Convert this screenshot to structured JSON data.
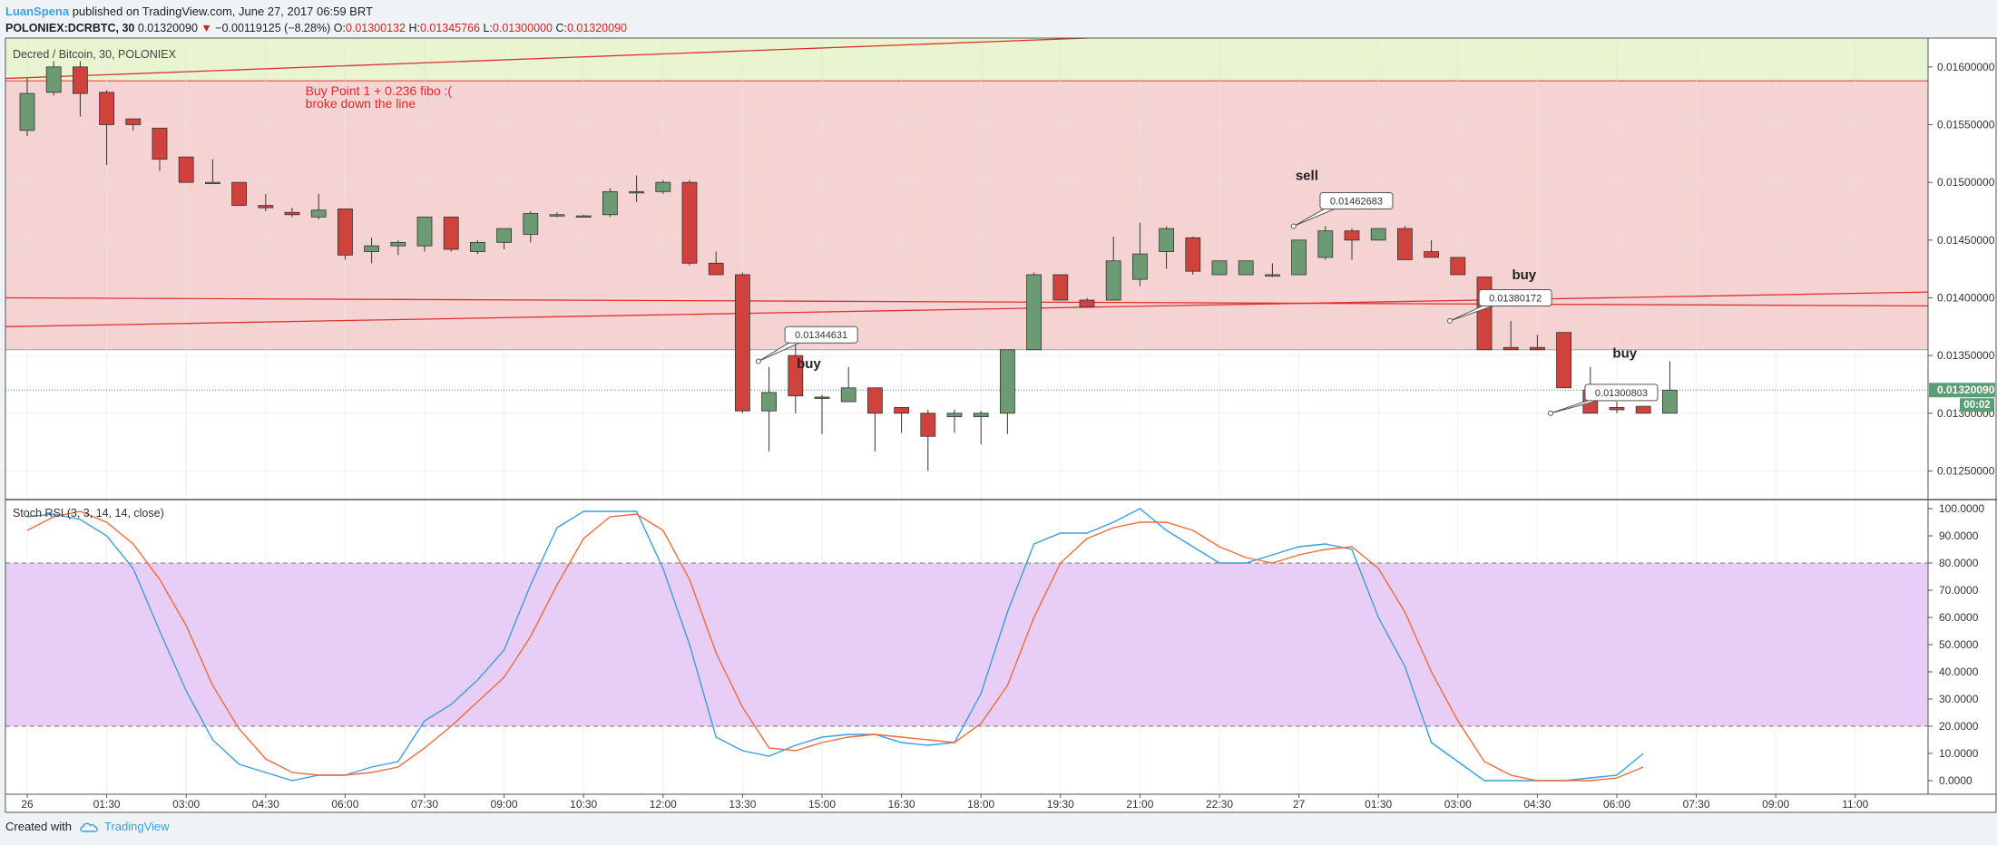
{
  "header": {
    "author": "LuanSpena",
    "published": " published on TradingView.com, June 27, 2017 06:59 BRT",
    "symbol": "POLONIEX:DCRBTC, 30",
    "last": "0.01320090",
    "change_arrow": "▼",
    "change": "−0.00119125 (−8.28%)",
    "o_label": "O:",
    "o_value": "0.01300132",
    "h_label": "H:",
    "h_value": "0.01345766",
    "l_label": "L:",
    "l_value": "0.01300000",
    "c_label": "C:",
    "c_value": "0.01320090"
  },
  "footer": {
    "created_with": "Created with",
    "brand": "TradingView",
    "logo_icon": "tradingview-cloud-icon"
  },
  "colors": {
    "up": "#6b9a73",
    "down": "#d0433c",
    "green_zone": "#e8f5d0",
    "red_zone": "#f5d3d3",
    "rsi_band": "#e8cdf6",
    "k_line": "#3a9ee0",
    "d_line": "#f26b3a",
    "annotation_red": "#e02a2a",
    "last_price_badge": "#5a9e74"
  },
  "chart_data": [
    {
      "type": "candlestick",
      "title": "Decred / Bitcoin, 30, POLONIEX",
      "ylim": [
        0.01226,
        0.01625
      ],
      "y_ticks": [
        "0.01600000",
        "0.01550000",
        "0.01500000",
        "0.01450000",
        "0.01400000",
        "0.01350000",
        "0.01300000",
        "0.01250000"
      ],
      "last_price_label": "0.01320090",
      "countdown_label": "00:02",
      "x_tick_labels": [
        "26",
        "01:30",
        "03:00",
        "04:30",
        "06:00",
        "07:30",
        "09:00",
        "10:30",
        "12:00",
        "13:30",
        "15:00",
        "16:30",
        "18:00",
        "19:30",
        "21:00",
        "22:30",
        "27",
        "01:30",
        "03:00",
        "04:30",
        "06:00",
        "07:30",
        "09:00",
        "11:00"
      ],
      "candles": [
        {
          "o": 0.01545,
          "h": 0.0159,
          "l": 0.0154,
          "c": 0.01577
        },
        {
          "o": 0.01578,
          "h": 0.01605,
          "l": 0.01575,
          "c": 0.016
        },
        {
          "o": 0.016,
          "h": 0.01605,
          "l": 0.01557,
          "c": 0.01577
        },
        {
          "o": 0.01578,
          "h": 0.0158,
          "l": 0.01515,
          "c": 0.0155
        },
        {
          "o": 0.01555,
          "h": 0.01555,
          "l": 0.01545,
          "c": 0.0155
        },
        {
          "o": 0.01547,
          "h": 0.01547,
          "l": 0.0151,
          "c": 0.0152
        },
        {
          "o": 0.01522,
          "h": 0.01522,
          "l": 0.015,
          "c": 0.015
        },
        {
          "o": 0.015,
          "h": 0.0152,
          "l": 0.015,
          "c": 0.015
        },
        {
          "o": 0.015,
          "h": 0.015,
          "l": 0.0148,
          "c": 0.0148
        },
        {
          "o": 0.0148,
          "h": 0.0149,
          "l": 0.01475,
          "c": 0.01478
        },
        {
          "o": 0.01474,
          "h": 0.01478,
          "l": 0.0147,
          "c": 0.01472
        },
        {
          "o": 0.0147,
          "h": 0.0149,
          "l": 0.01468,
          "c": 0.01476
        },
        {
          "o": 0.01477,
          "h": 0.01477,
          "l": 0.01433,
          "c": 0.01437
        },
        {
          "o": 0.0144,
          "h": 0.01452,
          "l": 0.0143,
          "c": 0.01445
        },
        {
          "o": 0.01445,
          "h": 0.0145,
          "l": 0.01437,
          "c": 0.01448
        },
        {
          "o": 0.01445,
          "h": 0.0147,
          "l": 0.0144,
          "c": 0.0147
        },
        {
          "o": 0.0147,
          "h": 0.0147,
          "l": 0.0144,
          "c": 0.01442
        },
        {
          "o": 0.0144,
          "h": 0.0145,
          "l": 0.01438,
          "c": 0.01448
        },
        {
          "o": 0.01448,
          "h": 0.0146,
          "l": 0.01442,
          "c": 0.0146
        },
        {
          "o": 0.01455,
          "h": 0.01475,
          "l": 0.01448,
          "c": 0.01473
        },
        {
          "o": 0.01472,
          "h": 0.01474,
          "l": 0.0147,
          "c": 0.01472
        },
        {
          "o": 0.0147,
          "h": 0.01472,
          "l": 0.0147,
          "c": 0.01471
        },
        {
          "o": 0.01472,
          "h": 0.01495,
          "l": 0.0147,
          "c": 0.01492
        },
        {
          "o": 0.01492,
          "h": 0.01506,
          "l": 0.01483,
          "c": 0.01492
        },
        {
          "o": 0.01492,
          "h": 0.01502,
          "l": 0.0149,
          "c": 0.015
        },
        {
          "o": 0.015,
          "h": 0.01502,
          "l": 0.01428,
          "c": 0.0143
        },
        {
          "o": 0.0143,
          "h": 0.0144,
          "l": 0.0142,
          "c": 0.0142
        },
        {
          "o": 0.0142,
          "h": 0.01422,
          "l": 0.013,
          "c": 0.01302
        },
        {
          "o": 0.01302,
          "h": 0.0134,
          "l": 0.01267,
          "c": 0.01318
        },
        {
          "o": 0.0135,
          "h": 0.0136,
          "l": 0.013,
          "c": 0.01315
        },
        {
          "o": 0.01314,
          "h": 0.01316,
          "l": 0.01282,
          "c": 0.01313
        },
        {
          "o": 0.0131,
          "h": 0.0134,
          "l": 0.0131,
          "c": 0.01322
        },
        {
          "o": 0.01322,
          "h": 0.01322,
          "l": 0.01267,
          "c": 0.013
        },
        {
          "o": 0.01305,
          "h": 0.01305,
          "l": 0.01283,
          "c": 0.013
        },
        {
          "o": 0.013,
          "h": 0.01303,
          "l": 0.0125,
          "c": 0.0128
        },
        {
          "o": 0.01297,
          "h": 0.01303,
          "l": 0.01283,
          "c": 0.013
        },
        {
          "o": 0.01297,
          "h": 0.01302,
          "l": 0.01273,
          "c": 0.013
        },
        {
          "o": 0.013,
          "h": 0.01355,
          "l": 0.01282,
          "c": 0.01355
        },
        {
          "o": 0.01355,
          "h": 0.01422,
          "l": 0.01355,
          "c": 0.0142
        },
        {
          "o": 0.0142,
          "h": 0.0142,
          "l": 0.01398,
          "c": 0.01398
        },
        {
          "o": 0.01398,
          "h": 0.014,
          "l": 0.01392,
          "c": 0.01392
        },
        {
          "o": 0.01398,
          "h": 0.01453,
          "l": 0.01398,
          "c": 0.01432
        },
        {
          "o": 0.01416,
          "h": 0.01465,
          "l": 0.0141,
          "c": 0.01438
        },
        {
          "o": 0.0144,
          "h": 0.01462,
          "l": 0.01425,
          "c": 0.0146
        },
        {
          "o": 0.01452,
          "h": 0.01453,
          "l": 0.0142,
          "c": 0.01423
        },
        {
          "o": 0.0142,
          "h": 0.01432,
          "l": 0.0142,
          "c": 0.01432
        },
        {
          "o": 0.0142,
          "h": 0.01432,
          "l": 0.0142,
          "c": 0.01432
        },
        {
          "o": 0.0142,
          "h": 0.0143,
          "l": 0.01418,
          "c": 0.0142
        },
        {
          "o": 0.0142,
          "h": 0.0145,
          "l": 0.0142,
          "c": 0.0145
        },
        {
          "o": 0.01435,
          "h": 0.01462,
          "l": 0.01433,
          "c": 0.01458
        },
        {
          "o": 0.01458,
          "h": 0.0146,
          "l": 0.01433,
          "c": 0.0145
        },
        {
          "o": 0.0145,
          "h": 0.0146,
          "l": 0.0145,
          "c": 0.0146
        },
        {
          "o": 0.0146,
          "h": 0.01462,
          "l": 0.01433,
          "c": 0.01433
        },
        {
          "o": 0.0144,
          "h": 0.0145,
          "l": 0.01435,
          "c": 0.01435
        },
        {
          "o": 0.01435,
          "h": 0.01435,
          "l": 0.0142,
          "c": 0.0142
        },
        {
          "o": 0.01418,
          "h": 0.01418,
          "l": 0.01355,
          "c": 0.01355
        },
        {
          "o": 0.01357,
          "h": 0.0138,
          "l": 0.01355,
          "c": 0.01355
        },
        {
          "o": 0.01357,
          "h": 0.01368,
          "l": 0.01355,
          "c": 0.01355
        },
        {
          "o": 0.0137,
          "h": 0.0137,
          "l": 0.01322,
          "c": 0.01322
        },
        {
          "o": 0.0132,
          "h": 0.0134,
          "l": 0.013,
          "c": 0.013
        },
        {
          "o": 0.01305,
          "h": 0.0131,
          "l": 0.013,
          "c": 0.01303
        },
        {
          "o": 0.01306,
          "h": 0.01306,
          "l": 0.013,
          "c": 0.013
        },
        {
          "o": 0.013,
          "h": 0.01345,
          "l": 0.013,
          "c": 0.0132
        }
      ],
      "zones": [
        {
          "name": "green-zone",
          "from": 0.01588,
          "to": 0.01625
        },
        {
          "name": "red-zone",
          "from": 0.01355,
          "to": 0.01588
        }
      ],
      "trend_lines": [
        {
          "from_index": 0,
          "from_price": 0.0159,
          "to_index": 40,
          "to_price": 0.01625
        },
        {
          "from_index": 0,
          "from_price": 0.01375,
          "to_index": 72,
          "to_price": 0.01405
        },
        {
          "from_index": 0,
          "from_price": 0.014,
          "to_index": 72,
          "to_price": 0.01393
        }
      ],
      "annotations": [
        {
          "line1": "Buy Point 1 + 0.236 fibo :(",
          "line2": "broke down the line",
          "index": 10.5,
          "price": 0.01585
        },
        {
          "label": "buy",
          "index": 29.5,
          "price": 0.01339
        },
        {
          "label": "sell",
          "index": 48.3,
          "price": 0.01502
        },
        {
          "label": "buy",
          "index": 56.5,
          "price": 0.01416
        },
        {
          "label": "buy",
          "index": 60.3,
          "price": 0.01348
        }
      ],
      "price_callouts": [
        {
          "label": "0.01344631",
          "index": 27.6,
          "price": 0.01345,
          "box_index": 28.6,
          "box_price": 0.01368
        },
        {
          "label": "0.01462683",
          "index": 47.8,
          "price": 0.01462,
          "box_index": 48.8,
          "box_price": 0.01484
        },
        {
          "label": "0.01380172",
          "index": 53.7,
          "price": 0.0138,
          "box_index": 54.8,
          "box_price": 0.014
        },
        {
          "label": "0.01300803",
          "index": 57.5,
          "price": 0.013,
          "box_index": 58.8,
          "box_price": 0.01318
        }
      ]
    },
    {
      "type": "line",
      "title": "Stoch RSI (3, 3, 14, 14, close)",
      "ylim": [
        -5,
        103
      ],
      "y_ticks": [
        "100.0000",
        "90.0000",
        "80.0000",
        "70.0000",
        "60.0000",
        "50.0000",
        "40.0000",
        "30.0000",
        "20.0000",
        "10.0000",
        "0.0000"
      ],
      "band": [
        20,
        80
      ],
      "series": [
        {
          "key": "k",
          "values": [
            97,
            98,
            96,
            90,
            78,
            55,
            33,
            15,
            6,
            3,
            0,
            2,
            2,
            5,
            7,
            22,
            28,
            37,
            48,
            72,
            93,
            99,
            99,
            99,
            78,
            50,
            16,
            11,
            9,
            13,
            16,
            17,
            17,
            14,
            13,
            14,
            32,
            62,
            87,
            91,
            91,
            95,
            100,
            92,
            86,
            80,
            80,
            83,
            86,
            87,
            85,
            60,
            42,
            14,
            7,
            0,
            0,
            0,
            0,
            1,
            2,
            10
          ]
        },
        {
          "key": "d",
          "values": [
            92,
            97,
            99,
            95,
            87,
            74,
            57,
            35,
            19,
            8,
            3,
            2,
            2,
            3,
            5,
            12,
            20,
            29,
            38,
            53,
            72,
            89,
            97,
            98,
            92,
            74,
            47,
            27,
            12,
            11,
            14,
            16,
            17,
            16,
            15,
            14,
            21,
            35,
            60,
            80,
            89,
            93,
            95,
            95,
            92,
            86,
            82,
            80,
            83,
            85,
            86,
            78,
            62,
            40,
            22,
            7,
            2,
            0,
            0,
            0,
            1,
            5
          ]
        }
      ]
    }
  ]
}
